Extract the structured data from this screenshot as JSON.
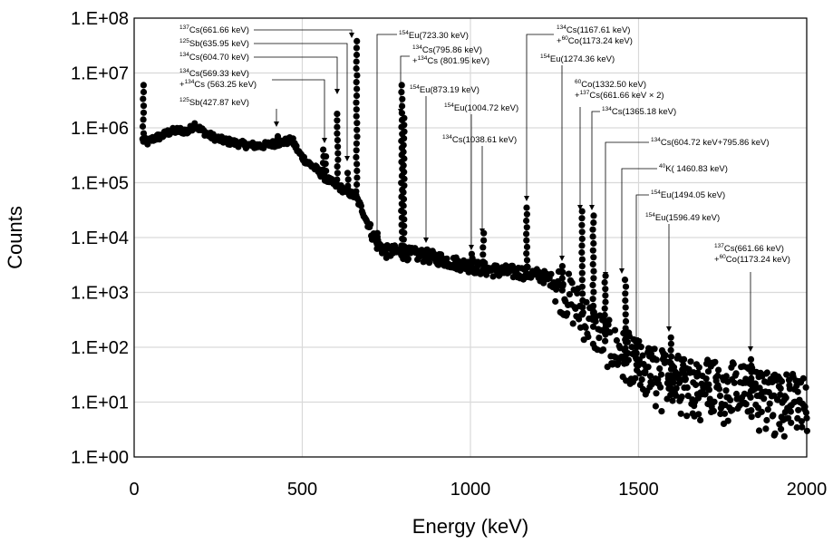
{
  "chart_data": {
    "type": "scatter",
    "title": "",
    "xlabel": "Energy (keV)",
    "ylabel": "Counts",
    "xlim": [
      0,
      2000
    ],
    "ylim_log10": [
      0,
      8
    ],
    "y_scale": "log",
    "grid": true,
    "x_ticks": [
      {
        "value": 0,
        "label": "0"
      },
      {
        "value": 500,
        "label": "500"
      },
      {
        "value": 1000,
        "label": "1000"
      },
      {
        "value": 1500,
        "label": "1500"
      },
      {
        "value": 2000,
        "label": "2000"
      }
    ],
    "y_ticks": [
      {
        "value": 1,
        "label": "1.E+00"
      },
      {
        "value": 10,
        "label": "1.E+01"
      },
      {
        "value": 100,
        "label": "1.E+02"
      },
      {
        "value": 1000,
        "label": "1.E+03"
      },
      {
        "value": 10000,
        "label": "1.E+04"
      },
      {
        "value": 100000,
        "label": "1.E+05"
      },
      {
        "value": 1000000,
        "label": "1.E+06"
      },
      {
        "value": 10000000,
        "label": "1.E+07"
      },
      {
        "value": 100000000,
        "label": "1.E+08"
      }
    ],
    "continuum": [
      [
        25,
        600000
      ],
      [
        40,
        550000
      ],
      [
        60,
        650000
      ],
      [
        80,
        700000
      ],
      [
        100,
        820000
      ],
      [
        120,
        880000
      ],
      [
        140,
        900000
      ],
      [
        160,
        850000
      ],
      [
        180,
        1150000
      ],
      [
        200,
        900000
      ],
      [
        230,
        700000
      ],
      [
        260,
        600000
      ],
      [
        300,
        530000
      ],
      [
        340,
        480000
      ],
      [
        380,
        470000
      ],
      [
        420,
        520000
      ],
      [
        450,
        560000
      ],
      [
        470,
        600000
      ],
      [
        490,
        350000
      ],
      [
        510,
        250000
      ],
      [
        540,
        180000
      ],
      [
        570,
        120000
      ],
      [
        600,
        90000
      ],
      [
        630,
        70000
      ],
      [
        660,
        55000
      ],
      [
        680,
        30000
      ],
      [
        700,
        15000
      ],
      [
        720,
        8000
      ],
      [
        750,
        5500
      ],
      [
        780,
        5500
      ],
      [
        820,
        5000
      ],
      [
        850,
        4800
      ],
      [
        900,
        4200
      ],
      [
        950,
        3500
      ],
      [
        1000,
        3000
      ],
      [
        1050,
        2600
      ],
      [
        1100,
        2400
      ],
      [
        1150,
        2300
      ],
      [
        1180,
        2200
      ],
      [
        1210,
        2000
      ],
      [
        1250,
        1600
      ],
      [
        1280,
        1000
      ],
      [
        1310,
        600
      ],
      [
        1340,
        350
      ],
      [
        1370,
        220
      ],
      [
        1400,
        130
      ],
      [
        1430,
        90
      ],
      [
        1460,
        70
      ],
      [
        1500,
        45
      ],
      [
        1550,
        35
      ],
      [
        1600,
        30
      ],
      [
        1650,
        25
      ],
      [
        1700,
        22
      ],
      [
        1750,
        20
      ],
      [
        1800,
        18
      ],
      [
        1850,
        15
      ],
      [
        1900,
        13
      ],
      [
        1950,
        12
      ],
      [
        2000,
        10
      ]
    ],
    "peaks": [
      {
        "energy": 27,
        "counts": 6000000
      },
      {
        "energy": 427.87,
        "counts": 700000
      },
      {
        "energy": 563.25,
        "counts": 400000
      },
      {
        "energy": 569.33,
        "counts": 300000
      },
      {
        "energy": 604.7,
        "counts": 1800000
      },
      {
        "energy": 635.95,
        "counts": 150000
      },
      {
        "energy": 661.66,
        "counts": 38000000
      },
      {
        "energy": 723.3,
        "counts": 12000
      },
      {
        "energy": 795.86,
        "counts": 6000000
      },
      {
        "energy": 801.95,
        "counts": 1500000
      },
      {
        "energy": 873.19,
        "counts": 6000
      },
      {
        "energy": 1004.72,
        "counts": 5000
      },
      {
        "energy": 1038.61,
        "counts": 12000
      },
      {
        "energy": 1167.61,
        "counts": 35000
      },
      {
        "energy": 1274.36,
        "counts": 3000
      },
      {
        "energy": 1332.5,
        "counts": 30000
      },
      {
        "energy": 1365.18,
        "counts": 25000
      },
      {
        "energy": 1400.38,
        "counts": 2000
      },
      {
        "energy": 1460.83,
        "counts": 1700
      },
      {
        "energy": 1494.05,
        "counts": 100
      },
      {
        "energy": 1596.49,
        "counts": 150
      },
      {
        "energy": 1835.32,
        "counts": 60
      }
    ]
  },
  "annotations": [
    {
      "lines": [
        {
          "sup": "137",
          "text": "Cs(661.66 keV)"
        }
      ]
    },
    {
      "lines": [
        {
          "sup": "125",
          "text": "Sb(635.95 keV)"
        }
      ]
    },
    {
      "lines": [
        {
          "sup": "134",
          "text": "Cs(604.70 keV)"
        }
      ]
    },
    {
      "lines": [
        {
          "sup": "134",
          "text": "Cs(569.33 keV)"
        },
        {
          "pre": "+",
          "sup": "134",
          "text": "Cs (563.25 keV)"
        }
      ]
    },
    {
      "lines": [
        {
          "sup": "125",
          "text": "Sb(427.87 keV)"
        }
      ]
    },
    {
      "lines": [
        {
          "sup": "154",
          "text": "Eu(723.30 keV)"
        }
      ]
    },
    {
      "lines": [
        {
          "sup": "134",
          "text": "Cs(795.86 keV)"
        },
        {
          "pre": "+",
          "sup": "134",
          "text": "Cs (801.95 keV)"
        }
      ]
    },
    {
      "lines": [
        {
          "sup": "154",
          "text": "Eu(873.19 keV)"
        }
      ]
    },
    {
      "lines": [
        {
          "sup": "154",
          "text": "Eu(1004.72 keV)"
        }
      ]
    },
    {
      "lines": [
        {
          "sup": "134",
          "text": "Cs(1038.61 keV)"
        }
      ]
    },
    {
      "lines": [
        {
          "sup": "134",
          "text": "Cs(1167.61 keV)"
        },
        {
          "pre": "+",
          "sup": "60",
          "text": "Co(1173.24 keV)"
        }
      ]
    },
    {
      "lines": [
        {
          "sup": "154",
          "text": "Eu(1274.36 keV)"
        }
      ]
    },
    {
      "lines": [
        {
          "sup": "60",
          "text": "Co(1332.50 keV)"
        },
        {
          "pre": "+",
          "sup": "137",
          "text": "Cs(661.66 keV × 2)"
        }
      ]
    },
    {
      "lines": [
        {
          "sup": "134",
          "text": "Cs(1365.18 keV)"
        }
      ]
    },
    {
      "lines": [
        {
          "sup": "134",
          "text": "Cs(604.72 keV+795.86 keV)"
        }
      ]
    },
    {
      "lines": [
        {
          "sup": "40",
          "text": "K( 1460.83 keV)"
        }
      ]
    },
    {
      "lines": [
        {
          "sup": "154",
          "text": "Eu(1494.05 keV)"
        }
      ]
    },
    {
      "lines": [
        {
          "sup": "154",
          "text": "Eu(1596.49 keV)"
        }
      ]
    },
    {
      "lines": [
        {
          "sup": "137",
          "text": "Cs(661.66 keV)"
        },
        {
          "pre": "+",
          "sup": "60",
          "text": "Co(1173.24 keV)"
        }
      ]
    }
  ],
  "colors": {
    "points": "#000000",
    "grid": "#d9d9d9",
    "axis": "#000000"
  }
}
